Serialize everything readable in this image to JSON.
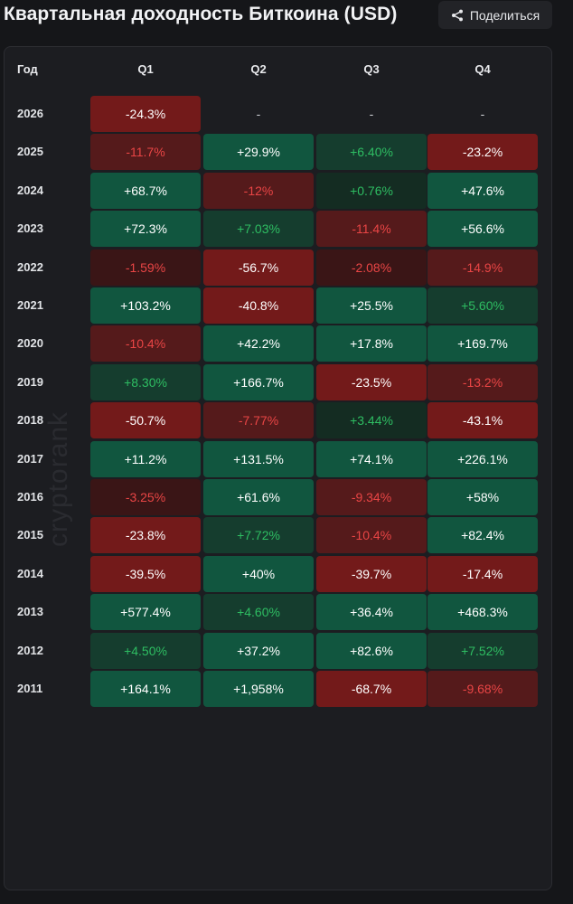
{
  "title": "Квартальная доходность Биткоина (USD)",
  "share_label": "Поделиться",
  "watermark": "cryptorank",
  "columns": {
    "year": "Год",
    "quarters": [
      "Q1",
      "Q2",
      "Q3",
      "Q4"
    ]
  },
  "rows": [
    {
      "year": "2026",
      "q": [
        "-24.3%",
        "-",
        "-",
        "-"
      ]
    },
    {
      "year": "2025",
      "q": [
        "-11.7%",
        "+29.9%",
        "+6.40%",
        "-23.2%"
      ]
    },
    {
      "year": "2024",
      "q": [
        "+68.7%",
        "-12%",
        "+0.76%",
        "+47.6%"
      ]
    },
    {
      "year": "2023",
      "q": [
        "+72.3%",
        "+7.03%",
        "-11.4%",
        "+56.6%"
      ]
    },
    {
      "year": "2022",
      "q": [
        "-1.59%",
        "-56.7%",
        "-2.08%",
        "-14.9%"
      ]
    },
    {
      "year": "2021",
      "q": [
        "+103.2%",
        "-40.8%",
        "+25.5%",
        "+5.60%"
      ]
    },
    {
      "year": "2020",
      "q": [
        "-10.4%",
        "+42.2%",
        "+17.8%",
        "+169.7%"
      ]
    },
    {
      "year": "2019",
      "q": [
        "+8.30%",
        "+166.7%",
        "-23.5%",
        "-13.2%"
      ]
    },
    {
      "year": "2018",
      "q": [
        "-50.7%",
        "-7.77%",
        "+3.44%",
        "-43.1%"
      ]
    },
    {
      "year": "2017",
      "q": [
        "+11.2%",
        "+131.5%",
        "+74.1%",
        "+226.1%"
      ]
    },
    {
      "year": "2016",
      "q": [
        "-3.25%",
        "+61.6%",
        "-9.34%",
        "+58%"
      ]
    },
    {
      "year": "2015",
      "q": [
        "-23.8%",
        "+7.72%",
        "-10.4%",
        "+82.4%"
      ]
    },
    {
      "year": "2014",
      "q": [
        "-39.5%",
        "+40%",
        "-39.7%",
        "-17.4%"
      ]
    },
    {
      "year": "2013",
      "q": [
        "+577.4%",
        "+4.60%",
        "+36.4%",
        "+468.3%"
      ]
    },
    {
      "year": "2012",
      "q": [
        "+4.50%",
        "+37.2%",
        "+82.6%",
        "+7.52%"
      ]
    },
    {
      "year": "2011",
      "q": [
        "+164.1%",
        "+1,958%",
        "-68.7%",
        "-9.68%"
      ]
    }
  ],
  "colors": {
    "strong_green": "#11563f",
    "medium_green": "#153d2e",
    "weak_green": "#142c22",
    "strong_red": "#731a1a",
    "medium_red": "#551a1b",
    "weak_red": "#3a1516",
    "text_green": "#2ebd62",
    "text_red": "#e94545",
    "text_light": "#ffffff"
  }
}
